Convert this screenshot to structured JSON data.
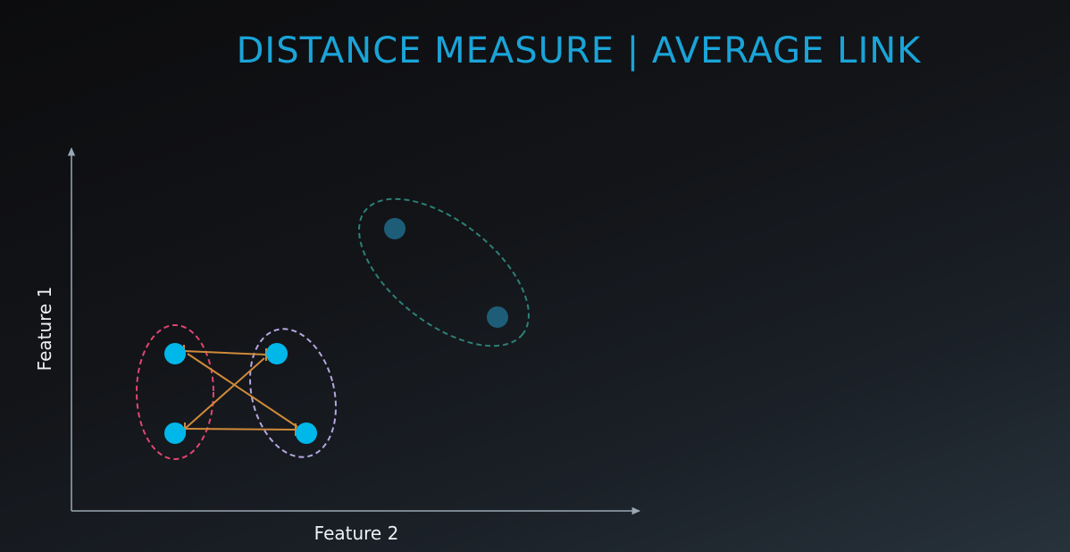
{
  "title": "DISTANCE MEASURE | AVERAGE LINK",
  "axes": {
    "x_label": "Feature 2",
    "y_label": "Feature 1"
  },
  "colors": {
    "title": "#1aa4d8",
    "axis": "#9aa7b4",
    "point_active": "#00b7ea",
    "point_faded": "#1d5d78",
    "cluster_red": "#e2466e",
    "cluster_purple": "#b8a6e0",
    "cluster_teal": "#2c8077",
    "link_lines": "#d08a3a"
  }
}
